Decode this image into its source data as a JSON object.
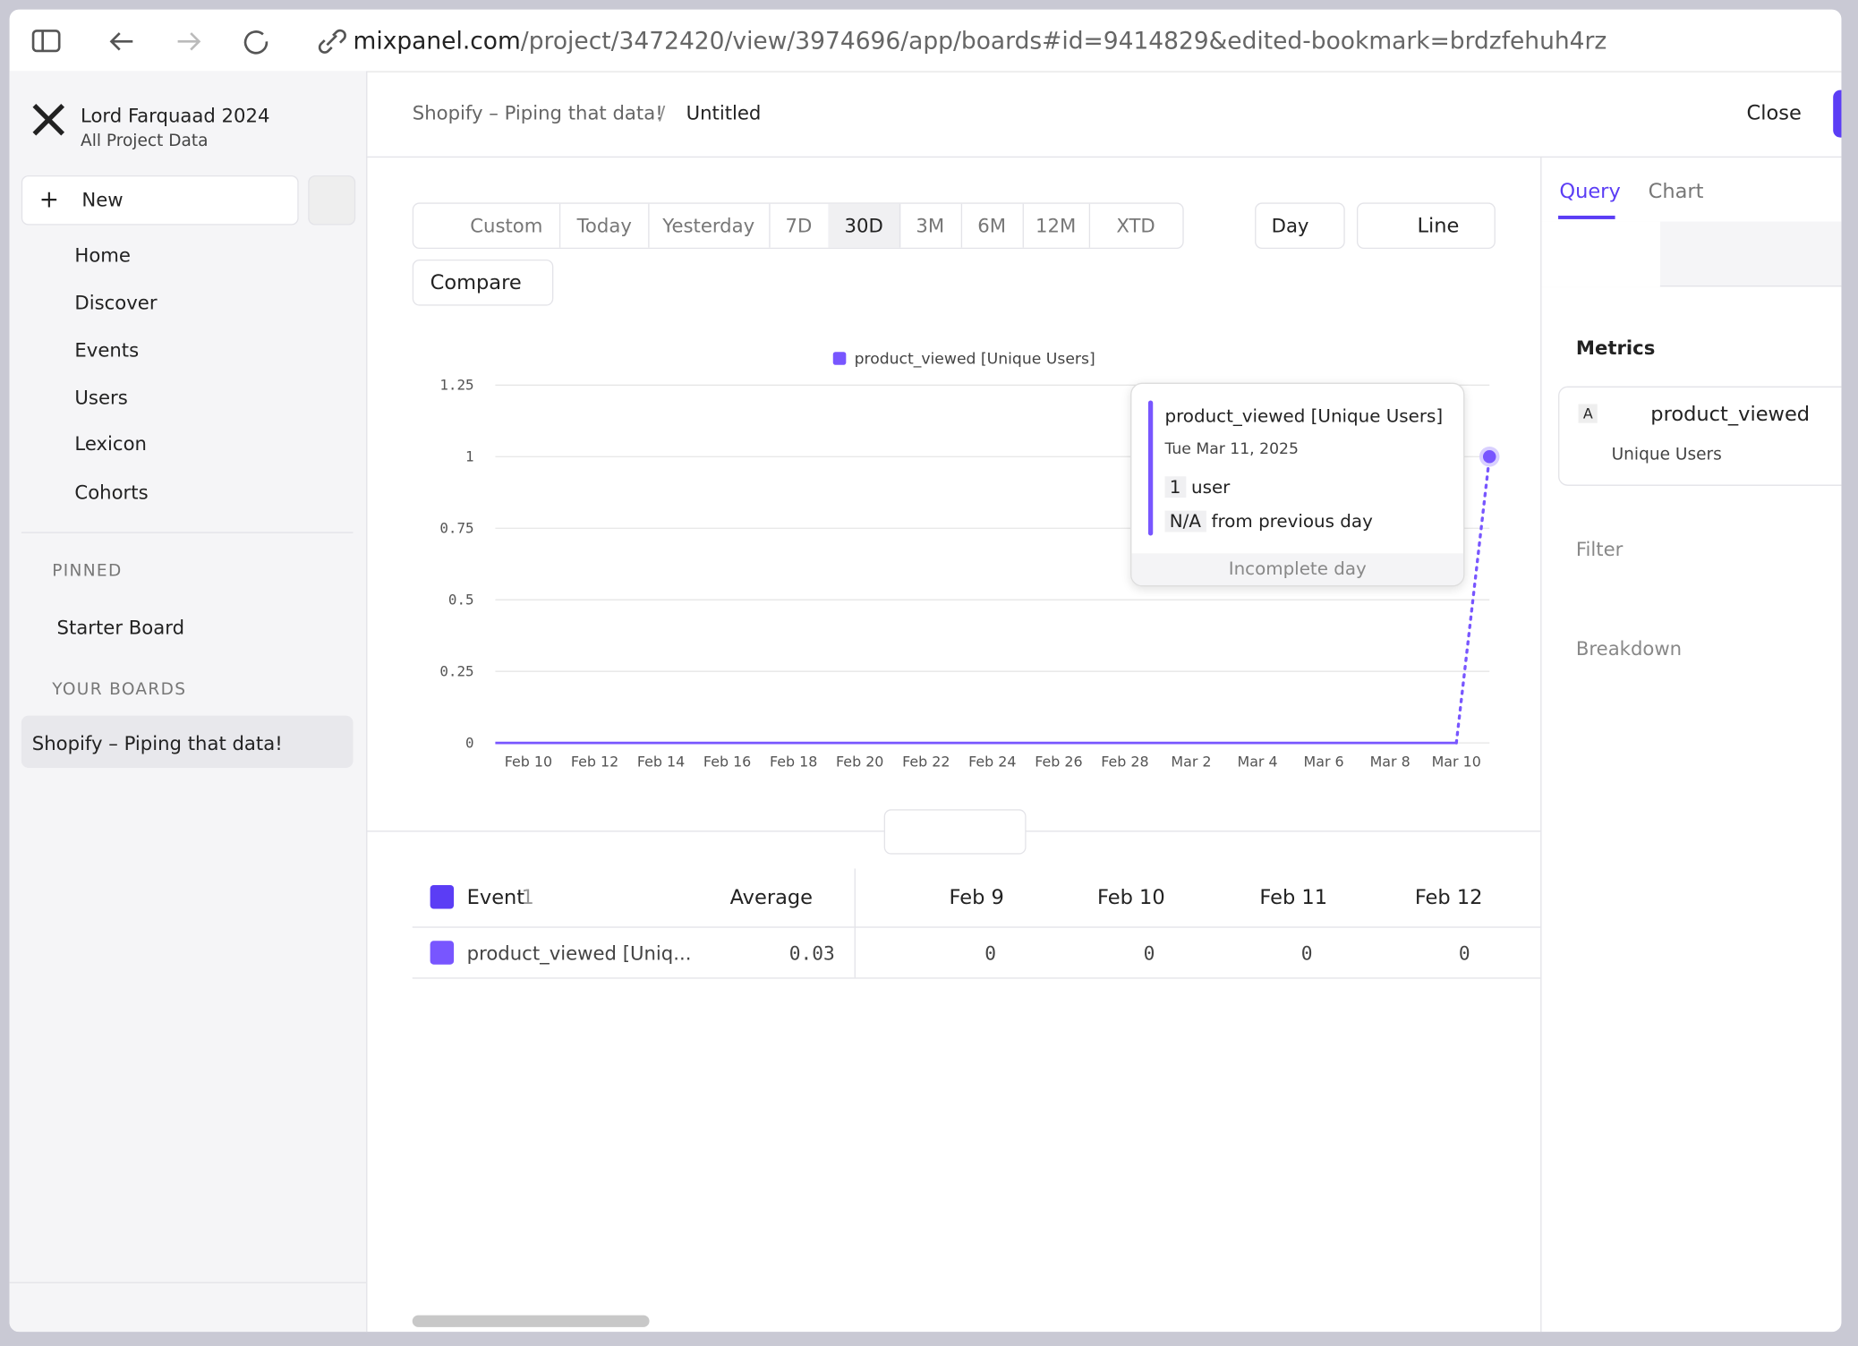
{
  "browser": {
    "url_host": "mixpanel.com",
    "url_path": "/project/3472420/view/3974696/app/boards#id=9414829&edited-bookmark=brdzfehuh4rz"
  },
  "sidebar": {
    "project": "Lord Farquaad 2024",
    "subtitle": "All Project Data",
    "new": "New",
    "nav": [
      "Home",
      "Discover",
      "Events",
      "Users",
      "Lexicon",
      "Cohorts"
    ],
    "pinned": "PINNED",
    "pinned_items": [
      "Starter Board"
    ],
    "your_boards": "YOUR BOARDS",
    "boards": [
      "Shopify – Piping that data!"
    ]
  },
  "header": {
    "breadcrumb": [
      "Shopify – Piping that data!",
      "Untitled"
    ],
    "close": "Close"
  },
  "toolbar": {
    "ranges": [
      "Custom",
      "Today",
      "Yesterday",
      "7D",
      "30D",
      "3M",
      "6M",
      "12M",
      "XTD"
    ],
    "interval": "Day",
    "chart_type": "Line",
    "compare": "Compare"
  },
  "chart_data": {
    "type": "line",
    "categories": [
      null,
      "Feb 10",
      null,
      "Feb 12",
      null,
      "Feb 14",
      null,
      "Feb 16",
      null,
      "Feb 18",
      null,
      "Feb 20",
      null,
      "Feb 22",
      null,
      "Feb 24",
      null,
      "Feb 26",
      null,
      "Feb 28",
      null,
      "Mar 2",
      null,
      "Mar 4",
      null,
      "Mar 6",
      null,
      "Mar 8",
      null,
      "Mar 10",
      null
    ],
    "series": [
      {
        "name": "product_viewed [Unique Users]",
        "color": "#7856ff",
        "values": [
          0,
          0,
          0,
          0,
          0,
          0,
          0,
          0,
          0,
          0,
          0,
          0,
          0,
          0,
          0,
          0,
          0,
          0,
          0,
          0,
          0,
          0,
          0,
          0,
          0,
          0,
          0,
          0,
          0,
          0,
          1
        ]
      }
    ],
    "ylim": [
      0,
      1.25
    ],
    "yticks": [
      0,
      0.25,
      0.5,
      0.75,
      1,
      1.25
    ],
    "grid": true
  },
  "tooltip": {
    "title": "product_viewed [Unique Users]",
    "date": "Tue Mar 11, 2025",
    "value": "1",
    "unit": "user",
    "change": "N/A",
    "change_text": "from previous day",
    "footer": "Incomplete day"
  },
  "table": {
    "header": [
      "Event",
      "1",
      "Average",
      "Feb 9",
      "Feb 10",
      "Feb 11",
      "Feb 12"
    ],
    "rows": [
      [
        "product_viewed [Uniq...",
        0.03,
        0,
        0,
        0,
        0
      ]
    ]
  },
  "panel": {
    "tabs": [
      "Query",
      "Chart"
    ],
    "metrics": "Metrics",
    "metric_letter": "A",
    "metric": "product_viewed",
    "measure": "Unique Users",
    "filter": "Filter",
    "breakdown": "Breakdown"
  }
}
